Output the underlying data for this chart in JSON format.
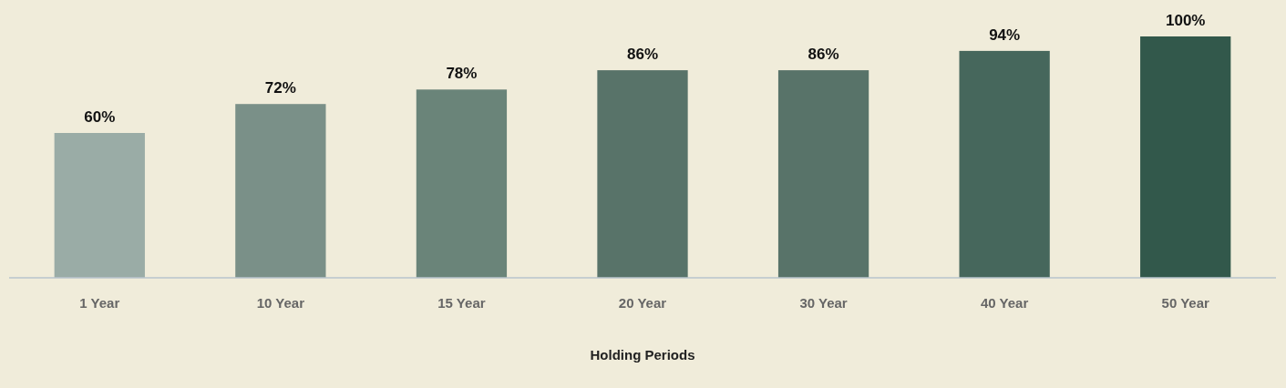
{
  "chart_data": {
    "type": "bar",
    "xlabel": "Holding Periods",
    "categories": [
      "1 Year",
      "10 Year",
      "15 Year",
      "20 Year",
      "30 Year",
      "40 Year",
      "50 Year"
    ],
    "values": [
      60,
      72,
      78,
      86,
      86,
      94,
      100
    ],
    "colors": [
      "#9aaca6",
      "#7a9088",
      "#6a8479",
      "#587369",
      "#587369",
      "#46675c",
      "#32584b"
    ],
    "value_labels": [
      "60%",
      "72%",
      "78%",
      "86%",
      "86%",
      "94%",
      "100%"
    ]
  }
}
